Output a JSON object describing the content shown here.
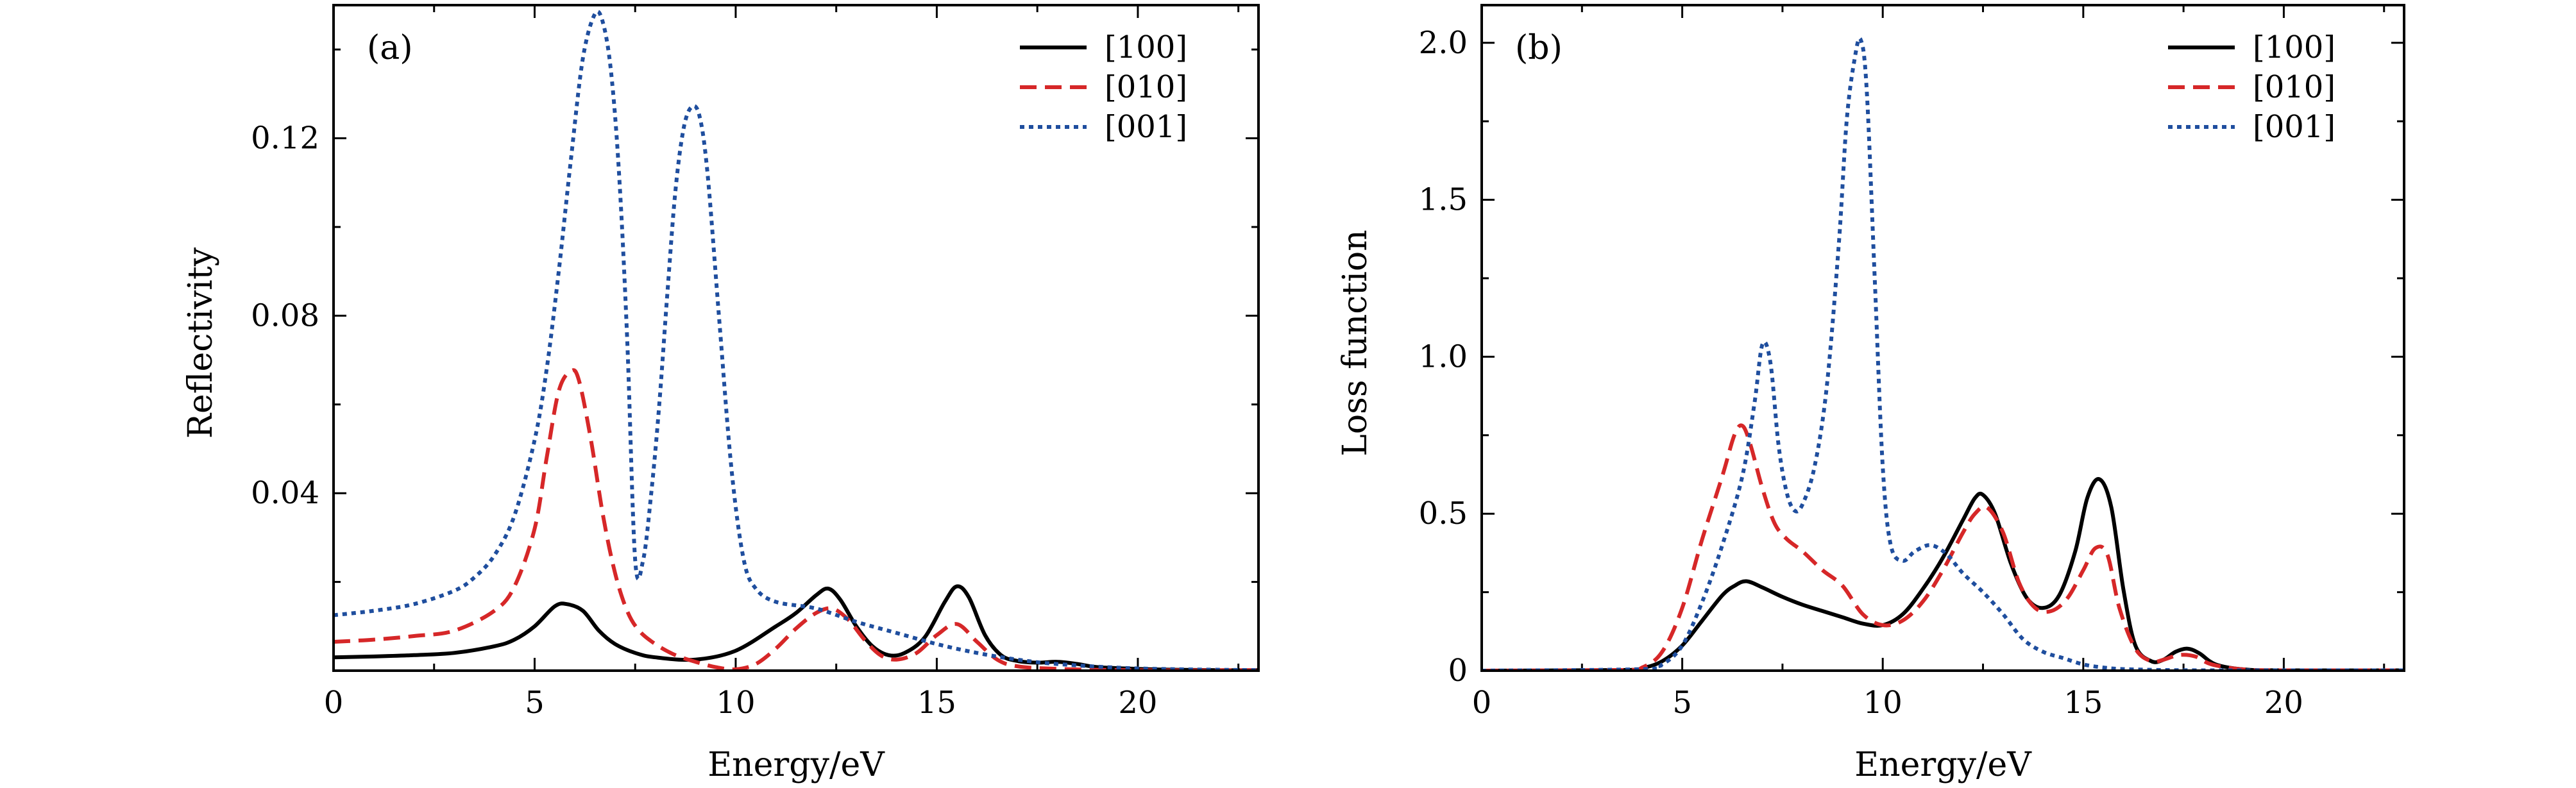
{
  "chart_data": [
    {
      "id": "a",
      "type": "line",
      "panel_label": "(a)",
      "xlabel": "Energy/eV",
      "ylabel": "Reflectivity",
      "xlim": [
        0,
        23
      ],
      "ylim": [
        0,
        0.15
      ],
      "xticks": [
        0,
        5,
        10,
        15,
        20
      ],
      "xtick_labels": [
        "0",
        "5",
        "10",
        "15",
        "20"
      ],
      "yticks": [
        0.04,
        0.08,
        0.12
      ],
      "ytick_labels": [
        "0.04",
        "0.08",
        "0.12"
      ],
      "legend": {
        "position": "top-right",
        "entries": [
          "[100]",
          "[010]",
          "[001]"
        ]
      },
      "series": [
        {
          "name": "[100]",
          "color": "#000000",
          "style": "solid",
          "x": [
            0,
            1,
            2,
            3,
            4,
            4.5,
            5,
            5.5,
            5.8,
            6.2,
            6.6,
            7.0,
            7.5,
            8.0,
            9.0,
            10.0,
            11.0,
            11.5,
            12.0,
            12.3,
            12.6,
            13.0,
            13.4,
            13.8,
            14.2,
            14.7,
            15.2,
            15.5,
            15.8,
            16.2,
            16.6,
            17.0,
            17.5,
            18.0,
            18.5,
            19.0,
            20.0,
            21.0,
            22.0,
            23.0
          ],
          "y": [
            0.003,
            0.0032,
            0.0035,
            0.004,
            0.0055,
            0.007,
            0.01,
            0.0145,
            0.015,
            0.0135,
            0.009,
            0.006,
            0.004,
            0.003,
            0.0025,
            0.0045,
            0.01,
            0.013,
            0.017,
            0.0185,
            0.016,
            0.01,
            0.0055,
            0.0035,
            0.004,
            0.0075,
            0.0155,
            0.019,
            0.0165,
            0.008,
            0.0035,
            0.0022,
            0.0018,
            0.002,
            0.0015,
            0.0008,
            0.0004,
            0.0002,
            0.0001,
            0.0001
          ]
        },
        {
          "name": "[010]",
          "color": "#d62728",
          "style": "dashed",
          "x": [
            0,
            1,
            2,
            3,
            4,
            4.5,
            5,
            5.3,
            5.6,
            5.9,
            6.1,
            6.4,
            6.7,
            7.0,
            7.3,
            7.6,
            8.0,
            8.5,
            9.0,
            9.5,
            10.0,
            10.5,
            11.0,
            11.5,
            12.0,
            12.4,
            12.8,
            13.2,
            13.6,
            14.0,
            14.5,
            15.0,
            15.5,
            16.0,
            16.5,
            17.0,
            18.0,
            20.0,
            23.0
          ],
          "y": [
            0.0065,
            0.007,
            0.0078,
            0.009,
            0.0135,
            0.019,
            0.032,
            0.048,
            0.063,
            0.0675,
            0.0655,
            0.052,
            0.035,
            0.022,
            0.0135,
            0.009,
            0.006,
            0.0035,
            0.002,
            0.0008,
            0.0003,
            0.0015,
            0.005,
            0.0095,
            0.013,
            0.014,
            0.0115,
            0.007,
            0.0035,
            0.0025,
            0.004,
            0.008,
            0.0105,
            0.0065,
            0.0025,
            0.001,
            0.0004,
            0.0001,
            0.0001
          ]
        },
        {
          "name": "[001]",
          "color": "#1f4e9e",
          "style": "dotted",
          "x": [
            0,
            1,
            2,
            3,
            3.5,
            4,
            4.5,
            5,
            5.3,
            5.6,
            5.9,
            6.2,
            6.5,
            6.7,
            6.9,
            7.1,
            7.3,
            7.5,
            7.7,
            7.9,
            8.1,
            8.3,
            8.5,
            8.7,
            8.9,
            9.1,
            9.3,
            9.6,
            9.9,
            10.2,
            10.5,
            11.0,
            12.0,
            13.0,
            14.0,
            15.0,
            16.0,
            17.0,
            18.0,
            20.0,
            23.0
          ],
          "y": [
            0.0125,
            0.0135,
            0.015,
            0.018,
            0.021,
            0.026,
            0.035,
            0.052,
            0.068,
            0.09,
            0.115,
            0.138,
            0.148,
            0.146,
            0.135,
            0.112,
            0.075,
            0.025,
            0.025,
            0.04,
            0.06,
            0.085,
            0.108,
            0.122,
            0.127,
            0.125,
            0.112,
            0.078,
            0.045,
            0.025,
            0.0185,
            0.0155,
            0.014,
            0.011,
            0.0085,
            0.006,
            0.004,
            0.0025,
            0.0015,
            0.0005,
            0.0001
          ]
        }
      ]
    },
    {
      "id": "b",
      "type": "line",
      "panel_label": "(b)",
      "xlabel": "Energy/eV",
      "ylabel": "Loss function",
      "xlim": [
        0,
        23
      ],
      "ylim": [
        0,
        2.12
      ],
      "xticks": [
        0,
        5,
        10,
        15,
        20
      ],
      "xtick_labels": [
        "0",
        "5",
        "10",
        "15",
        "20"
      ],
      "yticks": [
        0,
        0.5,
        1.0,
        1.5,
        2.0
      ],
      "ytick_labels": [
        "0",
        "0.5",
        "1.0",
        "1.5",
        "2.0"
      ],
      "legend": {
        "position": "top-right",
        "entries": [
          "[100]",
          "[010]",
          "[001]"
        ]
      },
      "series": [
        {
          "name": "[100]",
          "color": "#000000",
          "style": "solid",
          "x": [
            0,
            3.5,
            4.0,
            4.5,
            5.0,
            5.5,
            6.0,
            6.3,
            6.6,
            7.0,
            7.5,
            8.0,
            8.5,
            9.0,
            9.5,
            10.0,
            10.5,
            11.0,
            11.5,
            12.0,
            12.3,
            12.5,
            12.8,
            13.2,
            13.6,
            14.0,
            14.4,
            14.8,
            15.1,
            15.4,
            15.7,
            16.0,
            16.3,
            16.7,
            17.0,
            17.3,
            17.6,
            17.9,
            18.3,
            19.0,
            20.0,
            23.0
          ],
          "y": [
            0,
            0.002,
            0.008,
            0.03,
            0.08,
            0.16,
            0.24,
            0.27,
            0.285,
            0.265,
            0.235,
            0.21,
            0.19,
            0.17,
            0.15,
            0.145,
            0.18,
            0.26,
            0.36,
            0.48,
            0.55,
            0.56,
            0.5,
            0.34,
            0.23,
            0.2,
            0.24,
            0.38,
            0.55,
            0.61,
            0.52,
            0.26,
            0.08,
            0.03,
            0.035,
            0.06,
            0.07,
            0.055,
            0.02,
            0.004,
            0.001,
            0.001
          ]
        },
        {
          "name": "[010]",
          "color": "#d62728",
          "style": "dashed",
          "x": [
            0,
            3.5,
            4.0,
            4.5,
            5.0,
            5.5,
            6.0,
            6.3,
            6.5,
            6.7,
            7.0,
            7.3,
            7.6,
            8.0,
            8.5,
            9.0,
            9.5,
            10.0,
            10.5,
            11.0,
            11.5,
            12.0,
            12.3,
            12.6,
            13.0,
            13.4,
            13.8,
            14.2,
            14.6,
            15.0,
            15.3,
            15.6,
            15.9,
            16.3,
            16.7,
            17.0,
            17.4,
            17.8,
            18.2,
            19.0,
            20.0,
            23.0
          ],
          "y": [
            0,
            0.002,
            0.01,
            0.06,
            0.2,
            0.42,
            0.62,
            0.75,
            0.78,
            0.72,
            0.58,
            0.47,
            0.42,
            0.38,
            0.32,
            0.27,
            0.18,
            0.145,
            0.16,
            0.22,
            0.32,
            0.44,
            0.5,
            0.52,
            0.44,
            0.28,
            0.2,
            0.19,
            0.23,
            0.32,
            0.39,
            0.37,
            0.2,
            0.07,
            0.03,
            0.035,
            0.05,
            0.045,
            0.02,
            0.004,
            0.001,
            0.001
          ]
        },
        {
          "name": "[001]",
          "color": "#1f4e9e",
          "style": "dotted",
          "x": [
            0,
            4.0,
            4.5,
            5.0,
            5.5,
            6.0,
            6.5,
            6.8,
            7.0,
            7.2,
            7.4,
            7.6,
            7.8,
            8.0,
            8.3,
            8.6,
            8.9,
            9.1,
            9.3,
            9.45,
            9.6,
            9.8,
            10.0,
            10.2,
            10.5,
            10.8,
            11.2,
            11.6,
            12.0,
            12.5,
            13.0,
            13.5,
            14.0,
            14.5,
            15.0,
            15.5,
            16.0,
            17.0,
            18.0,
            20.0,
            23.0
          ],
          "y": [
            0,
            0.005,
            0.02,
            0.08,
            0.22,
            0.4,
            0.62,
            0.85,
            1.04,
            0.98,
            0.72,
            0.57,
            0.51,
            0.53,
            0.65,
            0.9,
            1.35,
            1.75,
            1.95,
            2.01,
            1.85,
            1.25,
            0.65,
            0.4,
            0.35,
            0.38,
            0.4,
            0.37,
            0.31,
            0.25,
            0.18,
            0.1,
            0.06,
            0.04,
            0.02,
            0.01,
            0.005,
            0.002,
            0.001,
            0.001,
            0.001
          ]
        }
      ]
    }
  ]
}
